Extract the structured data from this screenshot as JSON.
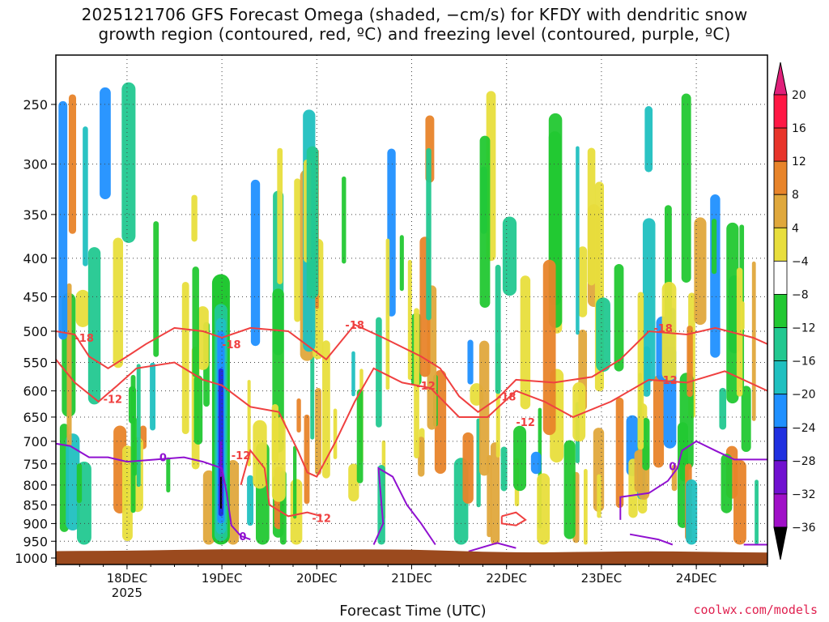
{
  "title": "2025121706 GFS Forecast Omega (shaded, −cm/s) for KFDY with dendritic snow\ngrowth region (contoured, red, ºC) and freezing level (contoured, purple, ºC)",
  "credit": "coolwx.com/models",
  "chart_data": {
    "type": "time-height cross-section",
    "title": "2025121706 GFS Forecast Omega (shaded, −cm/s) for KFDY with dendritic snow growth region (contoured, red, ºC) and freezing level (contoured, purple, ºC)",
    "xlabel": "Forecast Time (UTC)",
    "ylabel": "",
    "x_ticks": [
      {
        "label": "18DEC",
        "sub": "2025",
        "day": 0
      },
      {
        "label": "19DEC",
        "sub": "",
        "day": 1
      },
      {
        "label": "20DEC",
        "sub": "",
        "day": 2
      },
      {
        "label": "21DEC",
        "sub": "",
        "day": 3
      },
      {
        "label": "22DEC",
        "sub": "",
        "day": 4
      },
      {
        "label": "23DEC",
        "sub": "",
        "day": 5
      },
      {
        "label": "24DEC",
        "sub": "",
        "day": 6
      }
    ],
    "xlim_days_from_18dec": [
      -0.75,
      6.75
    ],
    "y_ticks_hpa": [
      250,
      300,
      350,
      400,
      450,
      500,
      550,
      600,
      650,
      700,
      750,
      800,
      850,
      900,
      950,
      1000
    ],
    "ylim_hpa": [
      1020,
      215
    ],
    "y_scale": "log-pressure",
    "grid": "dotted",
    "colorbar": {
      "levels": [
        "20",
        "16",
        "12",
        "8",
        "4",
        "−4",
        "−8",
        "−12",
        "−16",
        "−20",
        "−24",
        "−28",
        "−32",
        "−36"
      ],
      "colors": [
        "#ff1744",
        "#e8342a",
        "#e8842a",
        "#e0a83c",
        "#e8de3c",
        "#ffffff",
        "#22c832",
        "#22c890",
        "#20c0c0",
        "#2090ff",
        "#2030e0",
        "#7010d0",
        "#a010c8",
        "#a0a0a0",
        "#000000"
      ],
      "top_extend_color": "#e0207a",
      "bottom_extend_color": "#000000"
    },
    "terrain_color": "#9b4a1e",
    "contours": [
      {
        "name": "-18",
        "color": "#ef4040",
        "labels": [
          "-18",
          "-18",
          "-18",
          "-18"
        ]
      },
      {
        "name": "-12",
        "color": "#ef4040",
        "labels": [
          "-12",
          "-12",
          "-12",
          "-12",
          "-12",
          "-12"
        ]
      },
      {
        "name": "0",
        "color": "#9010d0",
        "labels": [
          "0",
          "0",
          "0"
        ]
      }
    ]
  }
}
